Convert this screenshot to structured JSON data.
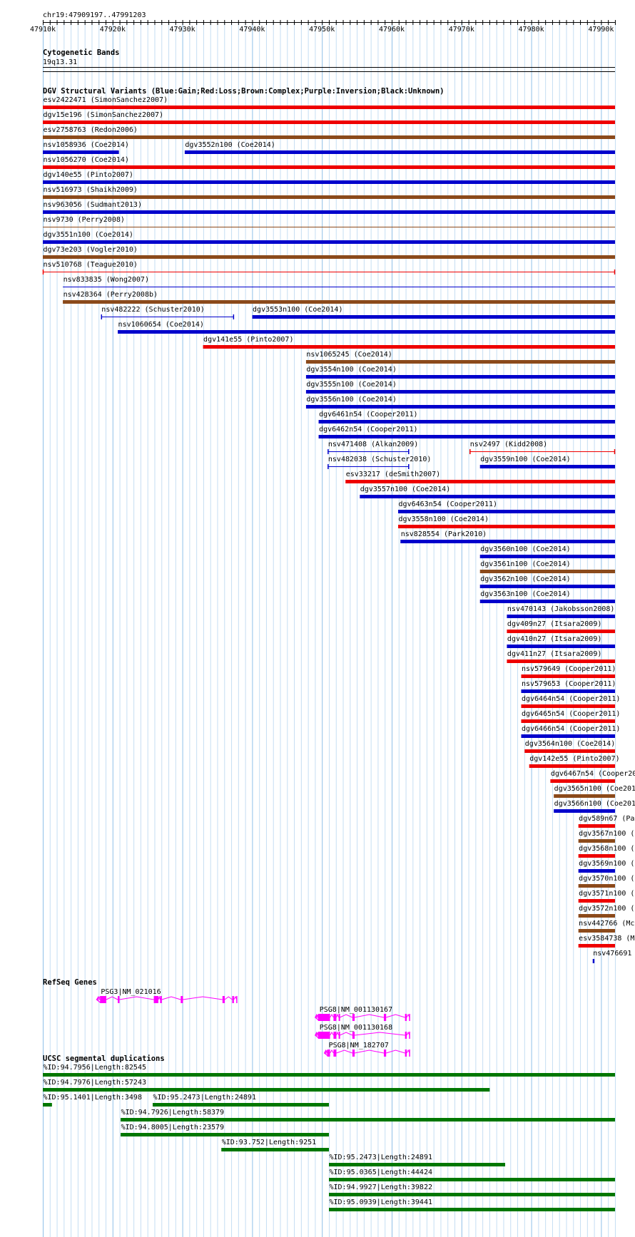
{
  "ruler": {
    "locus": "chr19:47909197..47991203",
    "ticks": [
      "47910k",
      "47920k",
      "47930k",
      "47940k",
      "47950k",
      "47960k",
      "47970k",
      "47980k",
      "47990k"
    ]
  },
  "cytobands": {
    "title": "Cytogenetic Bands",
    "band": "19q13.31"
  },
  "dgv": {
    "title": "DGV Structural Variants (Blue:Gain;Red:Loss;Brown:Complex;Purple:Inversion;Black:Unknown)",
    "colors": {
      "gain": "#0000cc",
      "loss": "#ee0000",
      "complex": "#8b4a1b"
    },
    "features": [
      {
        "label": "esv2422471 (SimonSanchez2007)",
        "type": "loss",
        "start": 0,
        "end": 100,
        "row": 0
      },
      {
        "label": "dgv15e196 (SimonSanchez2007)",
        "type": "loss",
        "start": 0,
        "end": 100,
        "row": 1
      },
      {
        "label": "esv2758763 (Redon2006)",
        "type": "complex",
        "start": 0,
        "end": 100,
        "row": 2
      },
      {
        "label": "nsv1058936 (Coe2014)",
        "type": "gain",
        "start": 0,
        "end": 13.3,
        "row": 3
      },
      {
        "label": "dgv3552n100 (Coe2014)",
        "type": "gain",
        "start": 24.8,
        "end": 100,
        "row": 3
      },
      {
        "label": "nsv1056270 (Coe2014)",
        "type": "loss",
        "start": 0,
        "end": 100,
        "row": 4
      },
      {
        "label": "dgv140e55 (Pinto2007)",
        "type": "gain",
        "start": 0,
        "end": 100,
        "row": 5
      },
      {
        "label": "nsv516973 (Shaikh2009)",
        "type": "complex",
        "start": 0,
        "end": 100,
        "row": 6
      },
      {
        "label": "nsv963056 (Sudmant2013)",
        "type": "gain",
        "start": 0,
        "end": 100,
        "row": 7
      },
      {
        "label": "nsv9730 (Perry2008)",
        "type": "complex",
        "start": 0,
        "end": 100,
        "row": 8,
        "thin": true
      },
      {
        "label": "dgv3551n100 (Coe2014)",
        "type": "gain",
        "start": 0,
        "end": 100,
        "row": 9
      },
      {
        "label": "dgv73e203 (Vogler2010)",
        "type": "complex",
        "start": 0,
        "end": 100,
        "row": 10
      },
      {
        "label": "nsv510768 (Teague2010)",
        "type": "loss",
        "start": 0,
        "end": 100,
        "row": 11,
        "thin": true,
        "ends": true
      },
      {
        "label": "nsv833835 (Wong2007)",
        "type": "gain",
        "start": 3.5,
        "end": 100,
        "row": 12,
        "thin": true
      },
      {
        "label": "nsv428364 (Perry2008b)",
        "type": "complex",
        "start": 3.5,
        "end": 100,
        "row": 13
      },
      {
        "label": "nsv482222 (Schuster2010)",
        "type": "gain",
        "start": 10.2,
        "end": 33.4,
        "row": 14,
        "thin": true,
        "ends": true
      },
      {
        "label": "dgv3553n100 (Coe2014)",
        "type": "gain",
        "start": 36.6,
        "end": 100,
        "row": 14
      },
      {
        "label": "nsv1060654 (Coe2014)",
        "type": "gain",
        "start": 13.1,
        "end": 100,
        "row": 15
      },
      {
        "label": "dgv141e55 (Pinto2007)",
        "type": "loss",
        "start": 28,
        "end": 100,
        "row": 16
      },
      {
        "label": "nsv1065245 (Coe2014)",
        "type": "complex",
        "start": 46,
        "end": 100,
        "row": 17
      },
      {
        "label": "dgv3554n100 (Coe2014)",
        "type": "gain",
        "start": 46,
        "end": 100,
        "row": 18
      },
      {
        "label": "dgv3555n100 (Coe2014)",
        "type": "gain",
        "start": 46,
        "end": 100,
        "row": 19
      },
      {
        "label": "dgv3556n100 (Coe2014)",
        "type": "gain",
        "start": 46,
        "end": 100,
        "row": 20
      },
      {
        "label": "dgv6461n54 (Cooper2011)",
        "type": "gain",
        "start": 48.2,
        "end": 100,
        "row": 21
      },
      {
        "label": "dgv6462n54 (Cooper2011)",
        "type": "gain",
        "start": 48.2,
        "end": 100,
        "row": 22
      },
      {
        "label": "nsv471408 (Alkan2009)",
        "type": "gain",
        "start": 49.8,
        "end": 64,
        "row": 23,
        "thin": true,
        "ends": true
      },
      {
        "label": "nsv2497 (Kidd2008)",
        "type": "loss",
        "start": 74.6,
        "end": 100,
        "row": 23,
        "thin": true,
        "ends": true
      },
      {
        "label": "nsv482038 (Schuster2010)",
        "type": "gain",
        "start": 49.8,
        "end": 64,
        "row": 24,
        "thin": true,
        "ends": true
      },
      {
        "label": "dgv3559n100 (Coe2014)",
        "type": "gain",
        "start": 76.4,
        "end": 100,
        "row": 24
      },
      {
        "label": "esv33217 (deSmith2007)",
        "type": "loss",
        "start": 52.9,
        "end": 100,
        "row": 25
      },
      {
        "label": "dgv3557n100 (Coe2014)",
        "type": "gain",
        "start": 55.4,
        "end": 100,
        "row": 26
      },
      {
        "label": "dgv6463n54 (Cooper2011)",
        "type": "gain",
        "start": 62.1,
        "end": 100,
        "row": 27
      },
      {
        "label": "dgv3558n100 (Coe2014)",
        "type": "loss",
        "start": 62.1,
        "end": 100,
        "row": 28
      },
      {
        "label": "nsv828554 (Park2010)",
        "type": "gain",
        "start": 62.5,
        "end": 100,
        "row": 29
      },
      {
        "label": "dgv3560n100 (Coe2014)",
        "type": "gain",
        "start": 76.4,
        "end": 100,
        "row": 30
      },
      {
        "label": "dgv3561n100 (Coe2014)",
        "type": "complex",
        "start": 76.4,
        "end": 100,
        "row": 31
      },
      {
        "label": "dgv3562n100 (Coe2014)",
        "type": "gain",
        "start": 76.4,
        "end": 100,
        "row": 32
      },
      {
        "label": "dgv3563n100 (Coe2014)",
        "type": "gain",
        "start": 76.4,
        "end": 100,
        "row": 33
      },
      {
        "label": "nsv470143 (Jakobsson2008)",
        "type": "gain",
        "start": 81.1,
        "end": 100,
        "row": 34
      },
      {
        "label": "dgv409n27 (Itsara2009)",
        "type": "loss",
        "start": 81.1,
        "end": 100,
        "row": 35
      },
      {
        "label": "dgv410n27 (Itsara2009)",
        "type": "gain",
        "start": 81.1,
        "end": 100,
        "row": 36
      },
      {
        "label": "dgv411n27 (Itsara2009)",
        "type": "loss",
        "start": 81.1,
        "end": 100,
        "row": 37
      },
      {
        "label": "nsv579649 (Cooper2011)",
        "type": "loss",
        "start": 83.6,
        "end": 100,
        "row": 38
      },
      {
        "label": "nsv579653 (Cooper2011)",
        "type": "gain",
        "start": 83.6,
        "end": 100,
        "row": 39
      },
      {
        "label": "dgv6464n54 (Cooper2011)",
        "type": "loss",
        "start": 83.6,
        "end": 100,
        "row": 40
      },
      {
        "label": "dgv6465n54 (Cooper2011)",
        "type": "loss",
        "start": 83.6,
        "end": 100,
        "row": 41
      },
      {
        "label": "dgv6466n54 (Cooper2011)",
        "type": "gain",
        "start": 83.6,
        "end": 100,
        "row": 42
      },
      {
        "label": "dgv3564n100 (Coe2014)",
        "type": "loss",
        "start": 84.2,
        "end": 100,
        "row": 43
      },
      {
        "label": "dgv142e55 (Pinto2007)",
        "type": "loss",
        "start": 85,
        "end": 100,
        "row": 44
      },
      {
        "label": "dgv6467n54 (Cooper20",
        "type": "loss",
        "start": 88.7,
        "end": 100,
        "row": 45
      },
      {
        "label": "dgv3565n100 (Coe201",
        "type": "complex",
        "start": 89.3,
        "end": 100,
        "row": 46
      },
      {
        "label": "dgv3566n100 (Coe201",
        "type": "gain",
        "start": 89.3,
        "end": 100,
        "row": 47
      },
      {
        "label": "dgv589n67 (Par",
        "type": "loss",
        "start": 93.6,
        "end": 100,
        "row": 48
      },
      {
        "label": "dgv3567n100 (",
        "type": "complex",
        "start": 93.6,
        "end": 100,
        "row": 49
      },
      {
        "label": "dgv3568n100 (",
        "type": "loss",
        "start": 93.6,
        "end": 100,
        "row": 50
      },
      {
        "label": "dgv3569n100 (",
        "type": "gain",
        "start": 93.6,
        "end": 100,
        "row": 51
      },
      {
        "label": "dgv3570n100 (",
        "type": "complex",
        "start": 93.6,
        "end": 100,
        "row": 52
      },
      {
        "label": "dgv3571n100 (",
        "type": "loss",
        "start": 93.6,
        "end": 100,
        "row": 53
      },
      {
        "label": "dgv3572n100 (",
        "type": "complex",
        "start": 93.6,
        "end": 100,
        "row": 54
      },
      {
        "label": "nsv442766 (Mc",
        "type": "complex",
        "start": 93.6,
        "end": 100,
        "row": 55
      },
      {
        "label": "esv3584738 (M",
        "type": "loss",
        "start": 93.6,
        "end": 100,
        "row": 56
      },
      {
        "label": "nsv476691",
        "type": "gain",
        "start": 96.1,
        "end": 96.4,
        "row": 57
      }
    ]
  },
  "refseq": {
    "title": "RefSeq Genes",
    "color": "#ff00ff",
    "genes": [
      {
        "label": "PSG3|NM_021016",
        "row": 0,
        "start": 9.4,
        "end": 33.9,
        "exons": [
          [
            10,
            11.1
          ],
          [
            13.1,
            13.4
          ],
          [
            19.4,
            20.2
          ],
          [
            20.5,
            20.8
          ],
          [
            24.1,
            24.5
          ],
          [
            31.4,
            31.8
          ],
          [
            33.1,
            33.4
          ]
        ]
      },
      {
        "label": "PSG8|NM_001130167",
        "row": 1,
        "start": 47.6,
        "end": 64.1,
        "exons": [
          [
            48.1,
            50.2
          ],
          [
            50.8,
            51.3
          ],
          [
            51.7,
            51.9
          ],
          [
            54.1,
            54.5
          ],
          [
            59.6,
            60
          ],
          [
            63.3,
            63.6
          ]
        ]
      },
      {
        "label": "PSG8|NM_001130168",
        "row": 2,
        "start": 47.6,
        "end": 64.1,
        "exons": [
          [
            48.1,
            50.2
          ],
          [
            50.8,
            51.3
          ],
          [
            51.7,
            51.9
          ],
          [
            54.1,
            54.5
          ],
          [
            63.3,
            63.6
          ]
        ]
      },
      {
        "label": "PSG8|NM_182707",
        "row": 3,
        "start": 49.2,
        "end": 64.1,
        "exons": [
          [
            49.7,
            50.2
          ],
          [
            50.8,
            51.3
          ],
          [
            54.1,
            54.5
          ],
          [
            59.6,
            60
          ],
          [
            63.3,
            63.6
          ]
        ]
      }
    ]
  },
  "segdups": {
    "title": "UCSC segmental duplications",
    "color": "#007700",
    "features": [
      {
        "label": "%ID:94.7956|Length:82545",
        "start": 0,
        "end": 100,
        "row": 0
      },
      {
        "label": "%ID:94.7976|Length:57243",
        "start": 0,
        "end": 78.1,
        "row": 1
      },
      {
        "label": "%ID:95.1401|Length:3498",
        "start": 0,
        "end": 1.6,
        "row": 2
      },
      {
        "label": "%ID:95.2473|Length:24891",
        "start": 19.2,
        "end": 50,
        "row": 2
      },
      {
        "label": "%ID:94.7926|Length:58379",
        "start": 13.6,
        "end": 100,
        "row": 3
      },
      {
        "label": "%ID:94.8005|Length:23579",
        "start": 13.6,
        "end": 50,
        "row": 4
      },
      {
        "label": "%ID:93.752|Length:9251",
        "start": 31.2,
        "end": 50,
        "row": 5
      },
      {
        "label": "%ID:95.2473|Length:24891",
        "start": 50,
        "end": 80.8,
        "row": 6
      },
      {
        "label": "%ID:95.0365|Length:44424",
        "start": 50,
        "end": 100,
        "row": 7
      },
      {
        "label": "%ID:94.9927|Length:39822",
        "start": 50,
        "end": 100,
        "row": 8
      },
      {
        "label": "%ID:95.0939|Length:39441",
        "start": 50,
        "end": 100,
        "row": 9
      }
    ]
  }
}
